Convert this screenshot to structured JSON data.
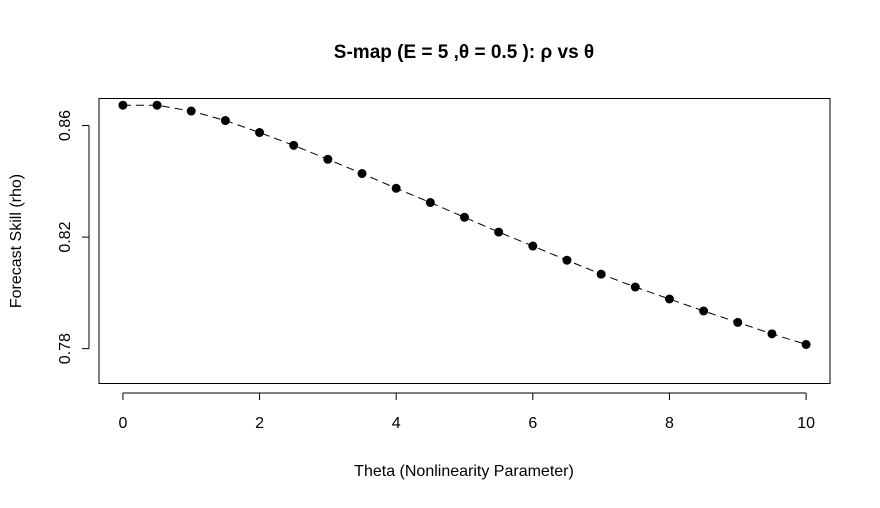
{
  "chart_data": {
    "type": "line",
    "title": "S-map (E = 5 ,θ = 0.5 ): ρ vs θ",
    "xlabel": "Theta (Nonlinearity Parameter)",
    "ylabel": "Forecast Skill (rho)",
    "xlim": [
      -0.35,
      10.35
    ],
    "ylim": [
      0.7675,
      0.8697
    ],
    "xticks": [
      0,
      2,
      4,
      6,
      8,
      10
    ],
    "xtick_labels": [
      "0",
      "2",
      "4",
      "6",
      "8",
      "10"
    ],
    "yticks": [
      0.78,
      0.82,
      0.86
    ],
    "ytick_labels": [
      "0.78",
      "0.82",
      "0.86"
    ],
    "grid": false,
    "legend": "none",
    "series": [
      {
        "style": "dashed line with filled circle markers",
        "color": "#000000",
        "x": [
          0,
          0.5,
          1,
          1.5,
          2,
          2.5,
          3,
          3.5,
          4,
          4.5,
          5,
          5.5,
          6,
          6.5,
          7,
          7.5,
          8,
          8.5,
          9,
          9.5,
          10
        ],
        "y": [
          0.8673,
          0.8673,
          0.8652,
          0.8618,
          0.8575,
          0.8529,
          0.8479,
          0.8428,
          0.8375,
          0.8324,
          0.8271,
          0.8218,
          0.8168,
          0.8117,
          0.8067,
          0.8021,
          0.7978,
          0.7935,
          0.7894,
          0.7853,
          0.7815
        ]
      }
    ]
  }
}
